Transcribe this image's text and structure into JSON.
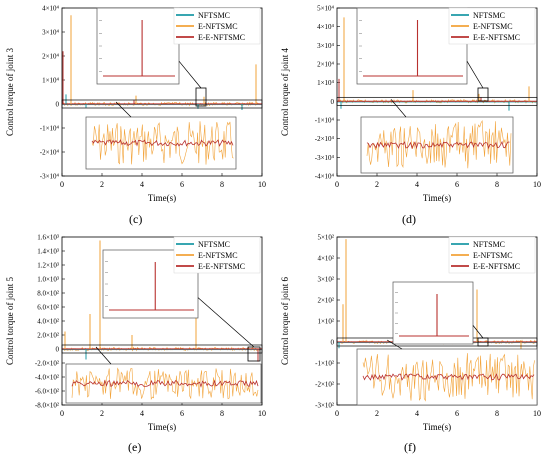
{
  "colors": {
    "nftsmc": "#1c9aa6",
    "enftsmc": "#f2a33a",
    "eenftsmc": "#b8312f",
    "box": "#000000"
  },
  "chart_data": [
    {
      "id": "c",
      "type": "line",
      "caption": "(c)",
      "xlabel": "Time(s)",
      "ylabel": "Control torque of joint 3",
      "xlim": [
        0,
        10
      ],
      "ylim": [
        -30000,
        40000
      ],
      "xticks": [
        "0",
        "2",
        "4",
        "6",
        "8",
        "10"
      ],
      "yticks": [
        "4×10⁴",
        "3×10⁴",
        "2×10⁴",
        "1×10⁴",
        "0",
        "-1×10⁴",
        "-2×10⁴",
        "-3×10⁴"
      ],
      "legend": [
        "NFTSMC",
        "E-NFTSMC",
        "E-E-NFTSMC"
      ],
      "legend_loc": "top-right",
      "spikes": [
        {
          "x": 0.45,
          "y": 37000,
          "s": "e"
        },
        {
          "x": 0.05,
          "y": 22000,
          "s": "ee"
        },
        {
          "x": 0.2,
          "y": 4000,
          "s": "n"
        },
        {
          "x": 1.2,
          "y": -1500,
          "s": "n"
        },
        {
          "x": 3.7,
          "y": 3500,
          "s": "e"
        },
        {
          "x": 3.6,
          "y": 1500,
          "s": "ee"
        },
        {
          "x": 7.1,
          "y": 3000,
          "s": "e"
        },
        {
          "x": 9.7,
          "y": 16500,
          "s": "e"
        },
        {
          "x": 6.8,
          "y": -2000,
          "s": "n"
        },
        {
          "x": 9.0,
          "y": -2500,
          "s": "n"
        }
      ]
    },
    {
      "id": "d",
      "type": "line",
      "caption": "(d)",
      "xlabel": "Time(s)",
      "ylabel": "Control torque of joint 4",
      "xlim": [
        0,
        10
      ],
      "ylim": [
        -40000,
        50000
      ],
      "xticks": [
        "0",
        "2",
        "4",
        "6",
        "8",
        "10"
      ],
      "yticks": [
        "5×10⁴",
        "4×10⁴",
        "3×10⁴",
        "2×10⁴",
        "1×10⁴",
        "0",
        "-1×10⁴",
        "-2×10⁴",
        "-3×10⁴",
        "-4×10⁴"
      ],
      "legend": [
        "NFTSMC",
        "E-NFTSMC",
        "E-E-NFTSMC"
      ],
      "legend_loc": "top-right",
      "spikes": [
        {
          "x": 0.35,
          "y": 45000,
          "s": "e"
        },
        {
          "x": 0.1,
          "y": 12000,
          "s": "ee"
        },
        {
          "x": 0.2,
          "y": -4000,
          "s": "n"
        },
        {
          "x": 3.8,
          "y": 6000,
          "s": "e"
        },
        {
          "x": 7.1,
          "y": 4000,
          "s": "e"
        },
        {
          "x": 7.2,
          "y": 2000,
          "s": "ee"
        },
        {
          "x": 8.6,
          "y": -5000,
          "s": "n"
        },
        {
          "x": 9.6,
          "y": 8000,
          "s": "e"
        }
      ]
    },
    {
      "id": "e",
      "type": "line",
      "caption": "(e)",
      "xlabel": "Time(s)",
      "ylabel": "Control torque of joint 5",
      "xlim": [
        0,
        10
      ],
      "ylim": [
        -800,
        1600
      ],
      "xticks": [
        "0",
        "2",
        "4",
        "6",
        "8",
        "10"
      ],
      "yticks": [
        "1.6×10³",
        "1.4×10³",
        "1.2×10³",
        "1.0×10³",
        "8.0×10²",
        "6.0×10²",
        "4.0×10²",
        "2.0×10²",
        "0",
        "-2.0×10²",
        "-4.0×10²",
        "-6.0×10²",
        "-8.0×10²"
      ],
      "legend": [
        "NFTSMC",
        "E-NFTSMC",
        "E-E-NFTSMC"
      ],
      "legend_loc": "top-right",
      "spikes": [
        {
          "x": 1.9,
          "y": 1550,
          "s": "e"
        },
        {
          "x": 6.7,
          "y": 1150,
          "s": "e"
        },
        {
          "x": 0.15,
          "y": 250,
          "s": "e"
        },
        {
          "x": 1.4,
          "y": 500,
          "s": "e"
        },
        {
          "x": 3.5,
          "y": 200,
          "s": "e"
        },
        {
          "x": 1.2,
          "y": -150,
          "s": "n"
        },
        {
          "x": 9.8,
          "y": -180,
          "s": "ee"
        }
      ]
    },
    {
      "id": "f",
      "type": "line",
      "caption": "(f)",
      "xlabel": "Time(s)",
      "ylabel": "Control torque of joint 6",
      "xlim": [
        0,
        10
      ],
      "ylim": [
        -300,
        500
      ],
      "xticks": [
        "0",
        "2",
        "4",
        "6",
        "8",
        "10"
      ],
      "yticks": [
        "5×10²",
        "4×10²",
        "3×10²",
        "2×10²",
        "1×10²",
        "0",
        "-1×10²",
        "-2×10²",
        "-3×10²"
      ],
      "legend": [
        "NFTSMC",
        "E-NFTSMC",
        "E-E-NFTSMC"
      ],
      "legend_loc": "top-right",
      "spikes": [
        {
          "x": 0.45,
          "y": 490,
          "s": "e"
        },
        {
          "x": 0.1,
          "y": -30,
          "s": "n"
        },
        {
          "x": 0.3,
          "y": 180,
          "s": "e"
        },
        {
          "x": 5.5,
          "y": 180,
          "s": "e"
        },
        {
          "x": 7.0,
          "y": 250,
          "s": "e"
        },
        {
          "x": 3.5,
          "y": 50,
          "s": "e"
        },
        {
          "x": 9.2,
          "y": -120,
          "s": "e"
        }
      ]
    }
  ]
}
